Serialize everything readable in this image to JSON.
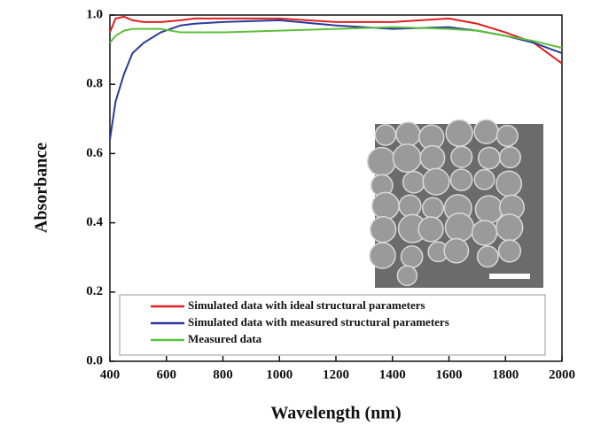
{
  "chart_data": {
    "type": "line",
    "x_label": "Wavelength (nm)",
    "y_label": "Absorbance",
    "x": [
      400,
      420,
      450,
      480,
      520,
      580,
      650,
      700,
      800,
      1000,
      1200,
      1400,
      1600,
      1700,
      1800,
      1900,
      2000
    ],
    "series": [
      {
        "name": "Simulated data with ideal structural parameters",
        "color": "#e02020",
        "values": [
          0.95,
          0.99,
          0.995,
          0.985,
          0.98,
          0.98,
          0.985,
          0.99,
          0.99,
          0.99,
          0.98,
          0.98,
          0.99,
          0.975,
          0.95,
          0.92,
          0.86
        ]
      },
      {
        "name": "Simulated data with measured structural parameters",
        "color": "#2a3a9a",
        "values": [
          0.64,
          0.75,
          0.83,
          0.89,
          0.92,
          0.95,
          0.97,
          0.975,
          0.98,
          0.985,
          0.97,
          0.96,
          0.965,
          0.955,
          0.94,
          0.92,
          0.89
        ]
      },
      {
        "name": "Measured data",
        "color": "#5cbf3a",
        "values": [
          0.92,
          0.94,
          0.955,
          0.96,
          0.96,
          0.96,
          0.95,
          0.95,
          0.95,
          0.955,
          0.96,
          0.965,
          0.96,
          0.955,
          0.94,
          0.925,
          0.905
        ]
      }
    ],
    "xlim": [
      400,
      2000
    ],
    "xticks": [
      400,
      600,
      800,
      1000,
      1200,
      1400,
      1600,
      1800,
      2000
    ],
    "ylim": [
      0,
      1
    ],
    "yticks": [
      {
        "value": 0,
        "label": "0.0"
      },
      0.2,
      0.4,
      0.6,
      0.8,
      {
        "value": 1,
        "label": "1.0"
      }
    ],
    "legend": "lower left"
  }
}
